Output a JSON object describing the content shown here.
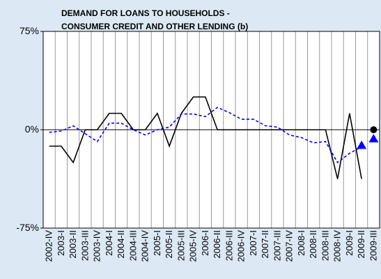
{
  "chart_data": {
    "type": "line",
    "title": [
      "DEMAND FOR LOANS TO HOUSEHOLDS -",
      "CONSUMER CREDIT AND OTHER LENDING (b)"
    ],
    "categories": [
      "2002-IV",
      "2003-I",
      "2003-II",
      "2003-III",
      "2003-IV",
      "2004-I",
      "2004-II",
      "2004-III",
      "2004-IV",
      "2005-I",
      "2005-II",
      "2005-III",
      "2005-IV",
      "2006-I",
      "2006-II",
      "2006-III",
      "2006-IV",
      "2007-I",
      "2007-II",
      "2007-III",
      "2007-IV",
      "2008-I",
      "2008-II",
      "2008-III",
      "2008-IV",
      "2009-I",
      "2009-II",
      "2009-III"
    ],
    "series": [
      {
        "color": "#000000",
        "style": "solid",
        "values": [
          -12.5,
          -12.5,
          -25,
          0,
          0,
          12.5,
          12.5,
          0,
          0,
          12.5,
          -12.5,
          12.5,
          25,
          25,
          0,
          0,
          0,
          0,
          0,
          0,
          0,
          0,
          0,
          0,
          -37.5,
          12.5,
          -37.5,
          null
        ]
      },
      {
        "color": "#0000ff",
        "style": "dashed",
        "values": [
          -2,
          -1,
          3,
          -3,
          -9,
          5,
          5,
          0,
          -4,
          0,
          2,
          12,
          12,
          10,
          17,
          13,
          8,
          8,
          3,
          2,
          -4,
          -6,
          -10,
          -9,
          -25,
          -18,
          -13,
          null
        ]
      },
      {
        "color": "#0000ff",
        "style": "triangle",
        "values": [
          null,
          null,
          null,
          null,
          null,
          null,
          null,
          null,
          null,
          null,
          null,
          null,
          null,
          null,
          null,
          null,
          null,
          null,
          null,
          null,
          null,
          null,
          null,
          null,
          null,
          null,
          -12,
          -7
        ]
      },
      {
        "color": "#000000",
        "style": "dot",
        "values": [
          null,
          null,
          null,
          null,
          null,
          null,
          null,
          null,
          null,
          null,
          null,
          null,
          null,
          null,
          null,
          null,
          null,
          null,
          null,
          null,
          null,
          null,
          null,
          null,
          null,
          null,
          null,
          0
        ]
      }
    ],
    "ylim": [
      -75,
      75
    ],
    "yticks": [
      {
        "value": -75,
        "label": "-75%"
      },
      {
        "value": 0,
        "label": "0%"
      },
      {
        "value": 75,
        "label": "75%"
      }
    ]
  }
}
